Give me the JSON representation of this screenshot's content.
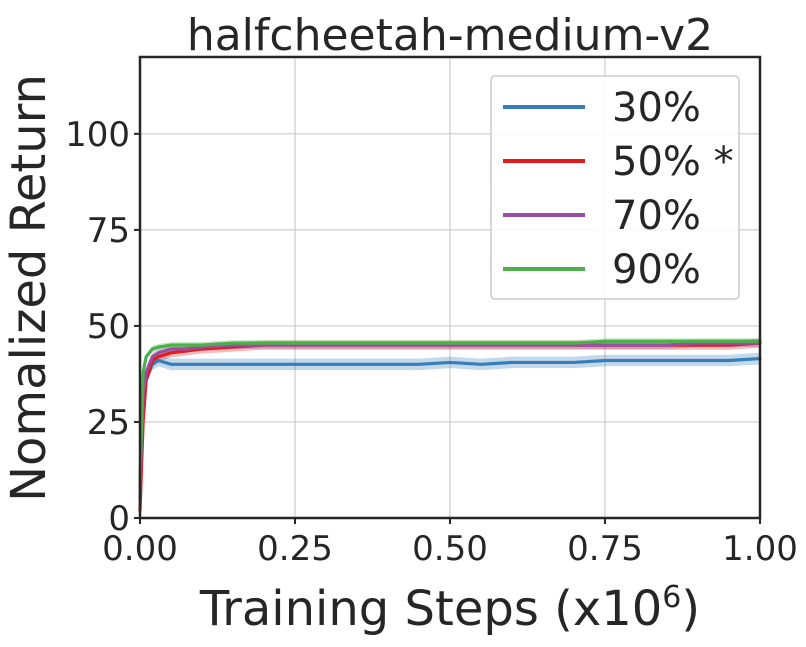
{
  "chart_data": {
    "type": "line",
    "title": "halfcheetah-medium-v2",
    "xlabel": "Training Steps (x10",
    "xlabel_exponent": "6",
    "xlabel_close": ")",
    "ylabel": "Nomalized Return",
    "xlim": [
      0,
      1.0
    ],
    "ylim": [
      0,
      120
    ],
    "xticks": [
      0.0,
      0.25,
      0.5,
      0.75,
      1.0
    ],
    "xtick_labels": [
      "0.00",
      "0.25",
      "0.50",
      "0.75",
      "1.00"
    ],
    "yticks": [
      0,
      25,
      50,
      75,
      100
    ],
    "ytick_labels": [
      "0",
      "25",
      "50",
      "75",
      "100"
    ],
    "grid": true,
    "legend_position": "top-right",
    "x": [
      0,
      0.005,
      0.01,
      0.02,
      0.03,
      0.05,
      0.075,
      0.1,
      0.15,
      0.2,
      0.25,
      0.3,
      0.35,
      0.4,
      0.45,
      0.5,
      0.55,
      0.6,
      0.65,
      0.7,
      0.75,
      0.8,
      0.85,
      0.9,
      0.95,
      1.0
    ],
    "series": [
      {
        "name": "30%",
        "color": "#377eb8",
        "values": [
          5,
          30,
          36,
          40,
          41,
          40,
          40,
          40,
          40,
          40,
          40,
          40,
          40,
          40,
          40,
          40.5,
          40,
          40.5,
          40.5,
          40.5,
          41,
          41,
          41,
          41,
          41,
          41.5
        ],
        "band": 1.5
      },
      {
        "name": "50%",
        "legend_suffix": " *",
        "color": "#e41a1c",
        "values": [
          2,
          25,
          36,
          41,
          42,
          43,
          43.5,
          44,
          44.5,
          45,
          45,
          45,
          45,
          45,
          45,
          45,
          45,
          45,
          45,
          45,
          45,
          45,
          45,
          45,
          45,
          45.5
        ],
        "band": 1.2
      },
      {
        "name": "70%",
        "color": "#984ea3",
        "values": [
          8,
          32,
          38,
          42,
          43,
          44,
          44,
          44.5,
          45,
          45,
          45,
          45,
          45,
          45,
          45,
          45,
          45,
          45,
          45,
          45,
          45,
          45,
          45,
          45.5,
          45.5,
          45.5
        ],
        "band": 1.0
      },
      {
        "name": "90%",
        "color": "#4daf4a",
        "values": [
          10,
          38,
          42,
          44,
          44.5,
          45,
          45,
          45,
          45.5,
          45.5,
          45.5,
          45.5,
          45.5,
          45.5,
          45.5,
          45.5,
          45.5,
          45.5,
          45.5,
          45.5,
          46,
          46,
          46,
          46,
          46,
          46
        ],
        "band": 0.8
      }
    ]
  }
}
